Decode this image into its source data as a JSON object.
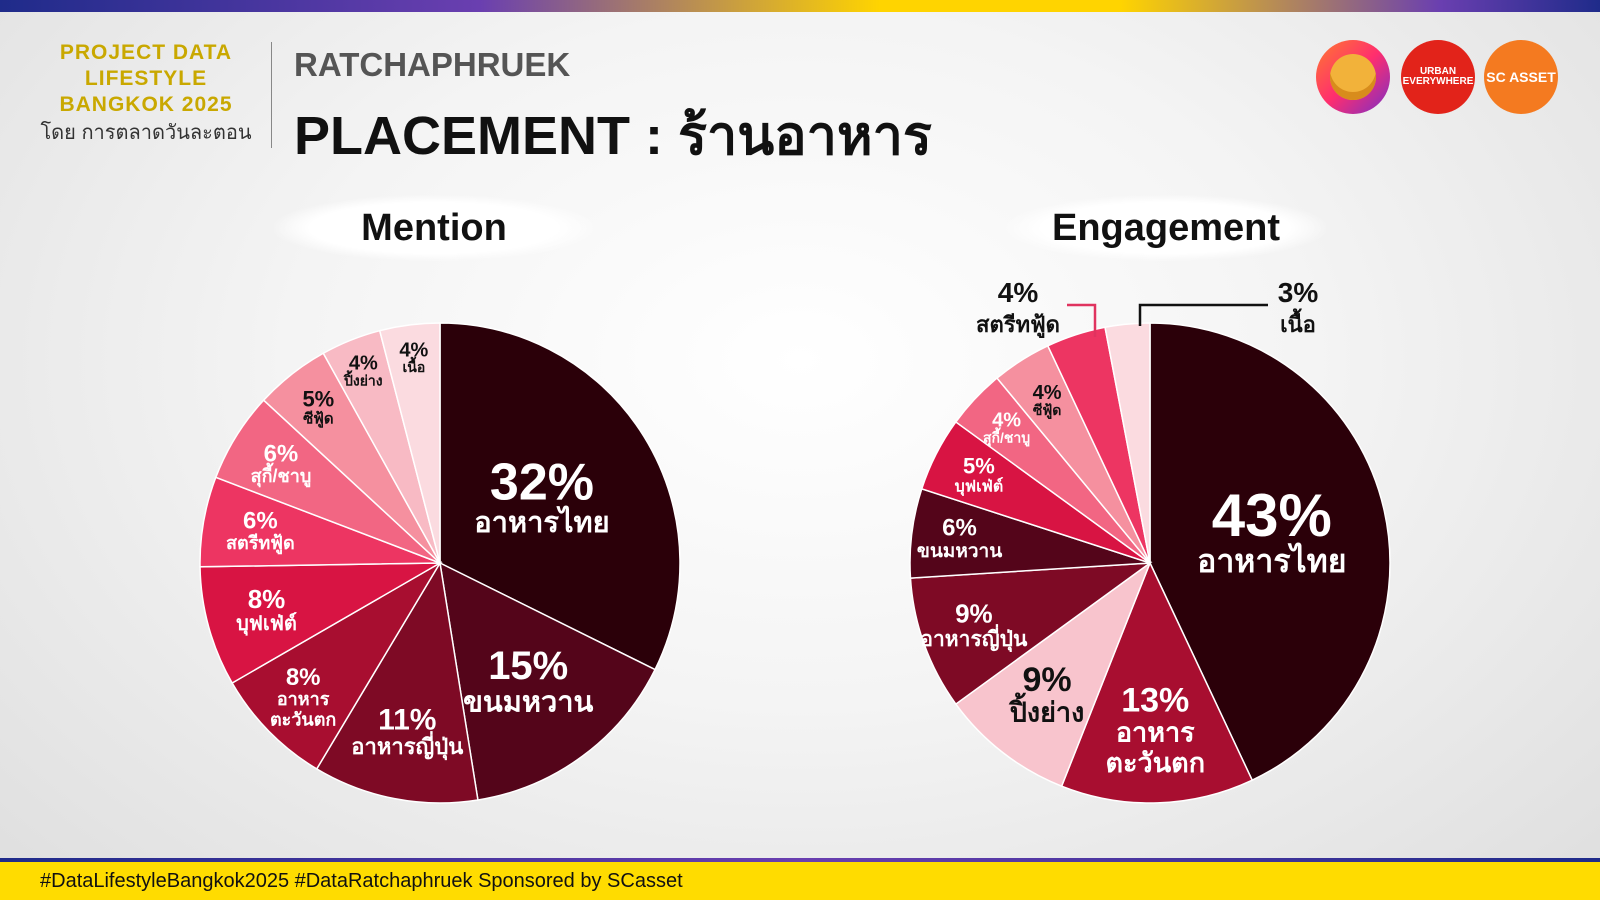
{
  "header": {
    "brand_line1": "PROJECT DATA",
    "brand_line2": "LIFESTYLE",
    "brand_line3": "BANGKOK 2025",
    "brand_sub": "โดย การตลาดวันละตอน",
    "subtitle": "RATCHAPHRUEK",
    "title": "PLACEMENT : ร้านอาหาร"
  },
  "logos": {
    "urban_line1": "URBAN",
    "urban_line2": "EVERYWHERE",
    "scasset": "SC ASSET"
  },
  "footer": {
    "text": "#DataLifestyleBangkok2025 #DataRatchaphruek Sponsored by SCasset"
  },
  "chart_data": [
    {
      "type": "pie",
      "title": "Mention",
      "slices": [
        {
          "label": "อาหารไทย",
          "value": 32,
          "color": "#2b0009"
        },
        {
          "label": "ขนมหวาน",
          "value": 15,
          "color": "#54051a"
        },
        {
          "label": "อาหารญี่ปุ่น",
          "value": 11,
          "color": "#7e0a25"
        },
        {
          "label": "อาหาร ตะวันตก",
          "value": 8,
          "color": "#a80e30"
        },
        {
          "label": "บุฟเฟ่ต์",
          "value": 8,
          "color": "#d81443"
        },
        {
          "label": "สตรีทฟู้ด",
          "value": 6,
          "color": "#ed3562"
        },
        {
          "label": "สุกี้/ชาบู",
          "value": 6,
          "color": "#f26683"
        },
        {
          "label": "ซีฟู้ด",
          "value": 5,
          "color": "#f5909f"
        },
        {
          "label": "ปิ้งย่าง",
          "value": 4,
          "color": "#f8bac4"
        },
        {
          "label": "เนื้อ",
          "value": 4,
          "color": "#fbdbe0"
        }
      ]
    },
    {
      "type": "pie",
      "title": "Engagement",
      "slices": [
        {
          "label": "อาหารไทย",
          "value": 43,
          "color": "#2b0009"
        },
        {
          "label": "อาหาร ตะวันตก",
          "value": 13,
          "color": "#a80e30"
        },
        {
          "label": "ปิ้งย่าง",
          "value": 9,
          "color": "#f8c4cd"
        },
        {
          "label": "อาหารญี่ปุ่น",
          "value": 9,
          "color": "#7e0a25"
        },
        {
          "label": "ขนมหวาน",
          "value": 6,
          "color": "#54051a"
        },
        {
          "label": "บุฟเฟ่ต์",
          "value": 5,
          "color": "#d81443"
        },
        {
          "label": "สุกี้/ชาบู",
          "value": 4,
          "color": "#f26683"
        },
        {
          "label": "ซีฟู้ด",
          "value": 4,
          "color": "#f5909f"
        },
        {
          "label": "สตรีทฟู้ด",
          "value": 4,
          "color": "#ed3562"
        },
        {
          "label": "เนื้อ",
          "value": 3,
          "color": "#fbdbe0"
        }
      ]
    }
  ]
}
